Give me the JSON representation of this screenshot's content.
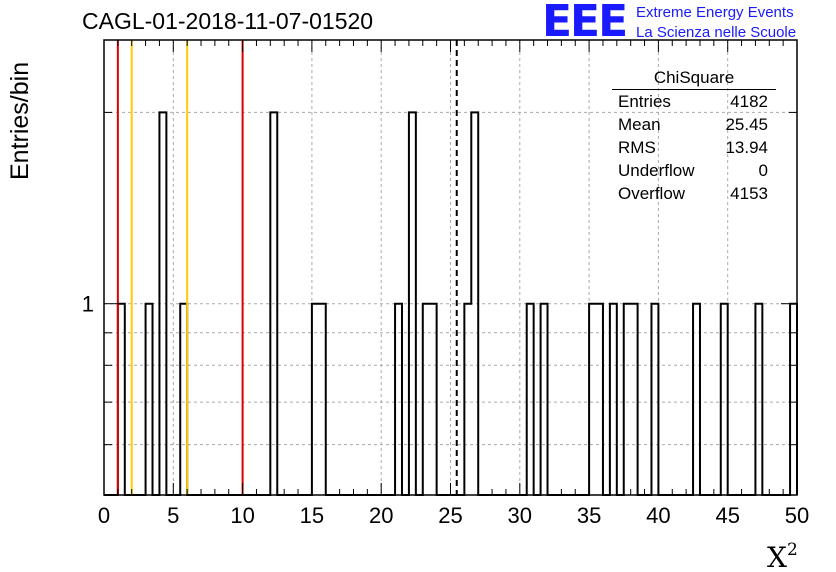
{
  "chart_data": {
    "type": "bar",
    "title": "CAGL-01-2018-11-07-01520",
    "xlabel": "X",
    "xlabel_superscript": "2",
    "ylabel": "Entries/bin",
    "xlim": [
      0,
      50
    ],
    "ylim": [
      0.5,
      2.6
    ],
    "yscale": "log",
    "grid": true,
    "bin_width": 0.5,
    "x_ticks": [
      "0",
      "5",
      "10",
      "15",
      "20",
      "25",
      "30",
      "35",
      "40",
      "45",
      "50"
    ],
    "y_ticks": [
      "1"
    ],
    "bins": [
      {
        "x": 1.0,
        "value": 1
      },
      {
        "x": 3.0,
        "value": 1
      },
      {
        "x": 4.0,
        "value": 2
      },
      {
        "x": 5.5,
        "value": 1
      },
      {
        "x": 12.0,
        "value": 2
      },
      {
        "x": 15.0,
        "value": 1
      },
      {
        "x": 15.5,
        "value": 1
      },
      {
        "x": 21.0,
        "value": 1
      },
      {
        "x": 22.0,
        "value": 2
      },
      {
        "x": 23.0,
        "value": 1
      },
      {
        "x": 23.5,
        "value": 1
      },
      {
        "x": 26.0,
        "value": 1
      },
      {
        "x": 26.5,
        "value": 2
      },
      {
        "x": 30.5,
        "value": 1
      },
      {
        "x": 31.5,
        "value": 1
      },
      {
        "x": 35.0,
        "value": 1
      },
      {
        "x": 35.5,
        "value": 1
      },
      {
        "x": 36.5,
        "value": 1
      },
      {
        "x": 37.5,
        "value": 1
      },
      {
        "x": 38.0,
        "value": 1
      },
      {
        "x": 39.5,
        "value": 1
      },
      {
        "x": 42.5,
        "value": 1
      },
      {
        "x": 44.5,
        "value": 1
      },
      {
        "x": 47.0,
        "value": 1
      },
      {
        "x": 49.5,
        "value": 1
      }
    ],
    "vertical_lines": [
      {
        "x": 1.0,
        "color": "#dd0000",
        "style": "solid"
      },
      {
        "x": 2.0,
        "color": "#ffcc00",
        "style": "solid"
      },
      {
        "x": 6.0,
        "color": "#ffcc00",
        "style": "solid"
      },
      {
        "x": 10.0,
        "color": "#dd0000",
        "style": "solid"
      },
      {
        "x": 25.45,
        "color": "#000000",
        "style": "dashed"
      }
    ],
    "stats": {
      "title": "ChiSquare",
      "rows": [
        {
          "label": "Entries",
          "value": "4182"
        },
        {
          "label": "Mean",
          "value": "25.45"
        },
        {
          "label": "RMS",
          "value": "13.94"
        },
        {
          "label": "Underflow",
          "value": "0"
        },
        {
          "label": "Overflow",
          "value": "4153"
        }
      ]
    }
  },
  "logo": {
    "text": "EEE",
    "line1": "Extreme Energy Events",
    "line2": "La Scienza nelle Scuole",
    "color": "#1a1aff"
  }
}
